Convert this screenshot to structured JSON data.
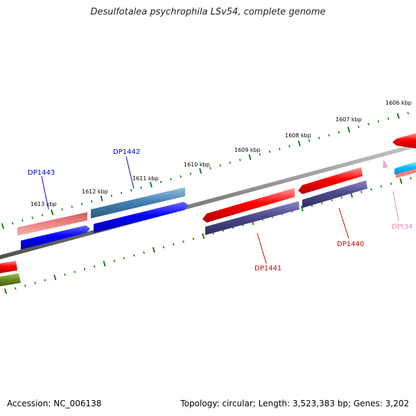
{
  "map": {
    "title": "Desulfotalea psychrophila LSv54, complete genome",
    "accession": "Accession: NC_006138",
    "summary": "Topology: circular; Length: 3,523,383 bp; Genes: 3,202"
  },
  "ticks": [
    "1613 kbp",
    "1612 kbp",
    "1611 kbp",
    "1610 kbp",
    "1609 kbp",
    "1608 kbp",
    "1607 kbp",
    "1606 kbp"
  ],
  "genes": {
    "dp1443": "DP1443",
    "dp1442": "DP1442",
    "dp1441": "DP1441",
    "dp1440": "DP1440",
    "dpt34": "DPt34"
  },
  "colors": {
    "tick": "#1a7a1a",
    "backbone": "#808080",
    "forward_cds": "#ff0000",
    "reverse_cds": "#0000ff",
    "other_cds": "#4b4b8c",
    "label_blue": "#0000cc",
    "label_red": "#cc0000",
    "label_pink": "#e68ab8"
  }
}
